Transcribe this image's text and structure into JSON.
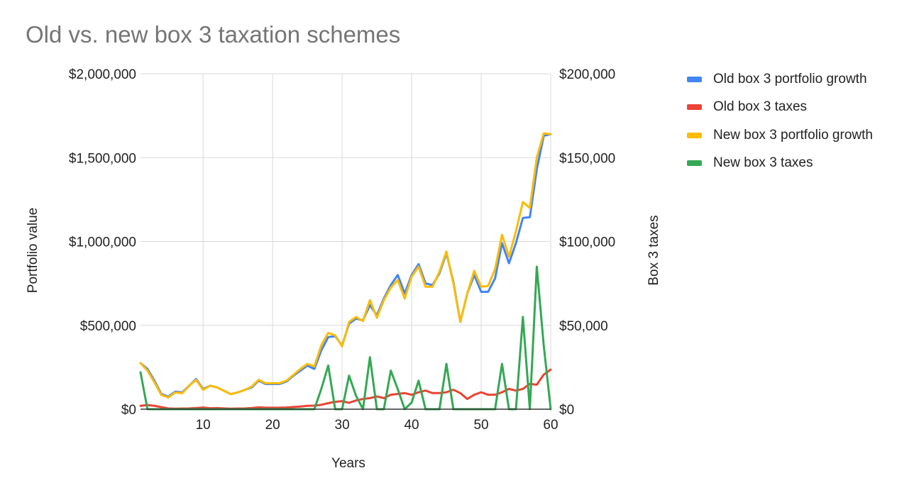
{
  "chart_data": {
    "type": "line",
    "title": "Old vs. new box 3 taxation schemes",
    "xlabel": "Years",
    "ylabel_left": "Portfolio value",
    "ylabel_right": "Box 3 taxes",
    "xlim": [
      1,
      60
    ],
    "x_ticks": [
      10,
      20,
      30,
      40,
      50,
      60
    ],
    "ylim_left": [
      0,
      2000000
    ],
    "ylim_right": [
      0,
      200000
    ],
    "y_ticks_left": [
      "$0",
      "$500,000",
      "$1,000,000",
      "$1,500,000",
      "$2,000,000"
    ],
    "y_ticks_right": [
      "$0",
      "$50,000",
      "$100,000",
      "$150,000",
      "$200,000"
    ],
    "grid": true,
    "legend_position": "right",
    "x": [
      1,
      2,
      3,
      4,
      5,
      6,
      7,
      8,
      9,
      10,
      11,
      12,
      13,
      14,
      15,
      16,
      17,
      18,
      19,
      20,
      21,
      22,
      23,
      24,
      25,
      26,
      27,
      28,
      29,
      30,
      31,
      32,
      33,
      34,
      35,
      36,
      37,
      38,
      39,
      40,
      41,
      42,
      43,
      44,
      45,
      46,
      47,
      48,
      49,
      50,
      51,
      52,
      53,
      54,
      55,
      56,
      57,
      58,
      59,
      60
    ],
    "series": [
      {
        "name": "Old box 3 portfolio growth",
        "axis": "left",
        "color": "#4285F4",
        "values": [
          275000,
          240000,
          170000,
          90000,
          75000,
          105000,
          100000,
          140000,
          180000,
          120000,
          140000,
          130000,
          110000,
          90000,
          100000,
          115000,
          130000,
          170000,
          150000,
          150000,
          150000,
          165000,
          200000,
          230000,
          260000,
          240000,
          350000,
          430000,
          435000,
          380000,
          510000,
          540000,
          530000,
          620000,
          560000,
          660000,
          740000,
          800000,
          690000,
          800000,
          865000,
          750000,
          740000,
          810000,
          930000,
          760000,
          520000,
          690000,
          800000,
          700000,
          700000,
          780000,
          990000,
          870000,
          990000,
          1140000,
          1145000,
          1430000,
          1630000,
          1640000
        ]
      },
      {
        "name": "Old box 3 taxes",
        "axis": "right",
        "color": "#EA4335",
        "values": [
          2000,
          2500,
          2000,
          1200,
          500,
          300,
          400,
          500,
          700,
          1000,
          600,
          700,
          500,
          300,
          400,
          500,
          700,
          1100,
          900,
          900,
          900,
          1000,
          1300,
          1600,
          2000,
          2100,
          2600,
          3600,
          4400,
          4800,
          3800,
          5200,
          6100,
          6600,
          7600,
          6600,
          8600,
          9100,
          9600,
          8600,
          10100,
          11100,
          9600,
          9600,
          10100,
          11600,
          9600,
          6100,
          8600,
          10100,
          8600,
          8600,
          10100,
          12100,
          11100,
          12100,
          15100,
          14600,
          20600,
          23600
        ]
      },
      {
        "name": "New box 3 portfolio growth",
        "axis": "left",
        "color": "#FBBC04",
        "values": [
          275000,
          230000,
          160000,
          85000,
          70000,
          100000,
          95000,
          140000,
          175000,
          115000,
          140000,
          130000,
          110000,
          90000,
          100000,
          115000,
          135000,
          175000,
          155000,
          155000,
          155000,
          170000,
          205000,
          240000,
          270000,
          255000,
          380000,
          455000,
          440000,
          375000,
          520000,
          550000,
          525000,
          650000,
          545000,
          650000,
          725000,
          770000,
          660000,
          790000,
          850000,
          730000,
          730000,
          820000,
          940000,
          750000,
          520000,
          690000,
          825000,
          730000,
          735000,
          835000,
          1040000,
          910000,
          1060000,
          1235000,
          1200000,
          1500000,
          1645000,
          1640000
        ]
      },
      {
        "name": "New box 3 taxes",
        "axis": "right",
        "color": "#34A853",
        "values": [
          22000,
          0,
          0,
          0,
          0,
          0,
          0,
          0,
          0,
          0,
          0,
          0,
          0,
          0,
          0,
          0,
          0,
          0,
          0,
          0,
          0,
          0,
          0,
          0,
          0,
          0,
          12000,
          26000,
          0,
          0,
          20000,
          8000,
          0,
          31000,
          0,
          0,
          23000,
          12000,
          0,
          4000,
          17000,
          0,
          0,
          0,
          27000,
          0,
          0,
          0,
          0,
          0,
          0,
          0,
          27000,
          0,
          0,
          55000,
          0,
          85000,
          38000,
          0
        ]
      }
    ]
  }
}
